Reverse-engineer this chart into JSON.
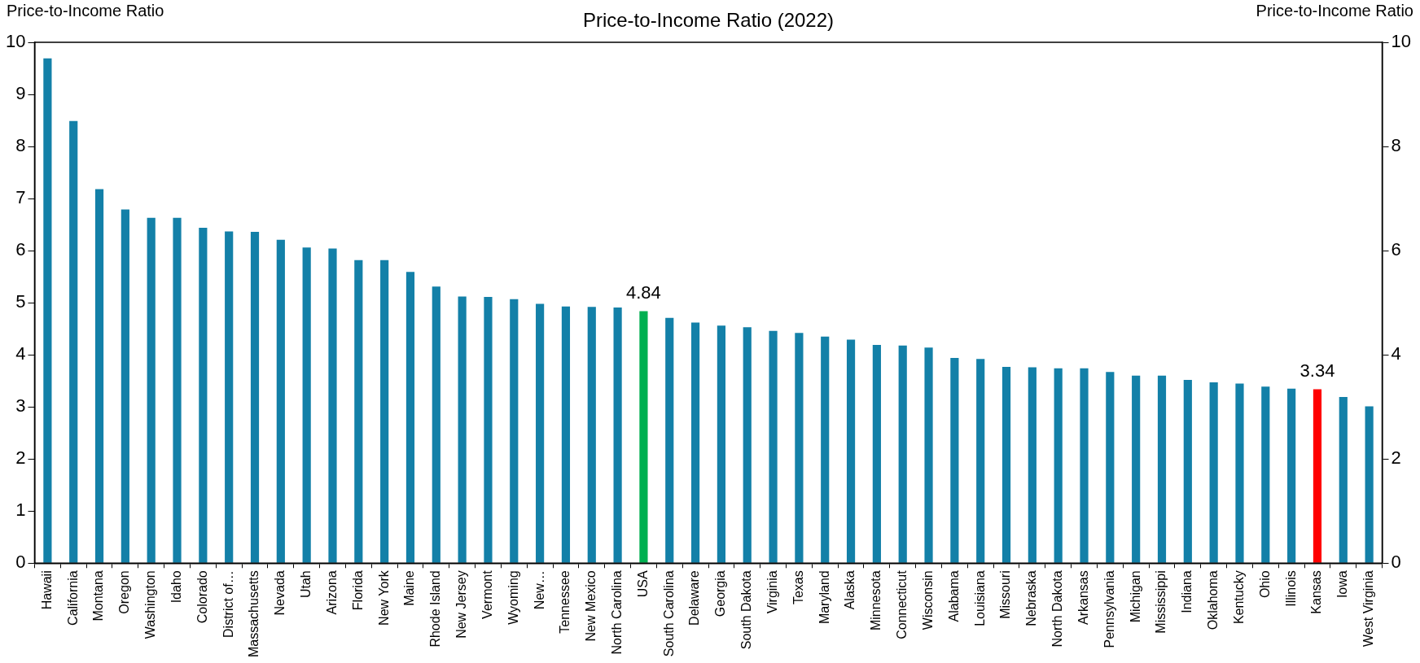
{
  "chart_data": {
    "type": "bar",
    "title": "Price-to-Income Ratio (2022)",
    "ylabel": "Price-to-Income Ratio",
    "y2label": "Price-to-Income Ratio",
    "categories": [
      "Hawaii",
      "California",
      "Montana",
      "Oregon",
      "Washington",
      "Idaho",
      "Colorado",
      "District of…",
      "Massachusetts",
      "Nevada",
      "Utah",
      "Arizona",
      "Florida",
      "New York",
      "Maine",
      "Rhode Island",
      "New Jersey",
      "Vermont",
      "Wyoming",
      "New…",
      "Tennessee",
      "New Mexico",
      "North Carolina",
      "USA",
      "South Carolina",
      "Delaware",
      "Georgia",
      "South Dakota",
      "Virginia",
      "Texas",
      "Maryland",
      "Alaska",
      "Minnesota",
      "Connecticut",
      "Wisconsin",
      "Alabama",
      "Louisiana",
      "Missouri",
      "Nebraska",
      "North Dakota",
      "Arkansas",
      "Pennsylvania",
      "Michigan",
      "Mississippi",
      "Indiana",
      "Oklahoma",
      "Kentucky",
      "Ohio",
      "Illinois",
      "Kansas",
      "Iowa",
      "West Virginia"
    ],
    "values": [
      9.69,
      8.49,
      7.18,
      6.79,
      6.63,
      6.63,
      6.44,
      6.37,
      6.36,
      6.21,
      6.06,
      6.04,
      5.82,
      5.82,
      5.59,
      5.31,
      5.12,
      5.11,
      5.07,
      4.98,
      4.93,
      4.92,
      4.91,
      4.84,
      4.71,
      4.62,
      4.56,
      4.53,
      4.46,
      4.42,
      4.35,
      4.29,
      4.19,
      4.18,
      4.14,
      3.94,
      3.92,
      3.77,
      3.76,
      3.74,
      3.74,
      3.67,
      3.6,
      3.6,
      3.52,
      3.47,
      3.45,
      3.39,
      3.35,
      3.34,
      3.19,
      3.01
    ],
    "colors": [
      "#1380a8",
      "#1380a8",
      "#1380a8",
      "#1380a8",
      "#1380a8",
      "#1380a8",
      "#1380a8",
      "#1380a8",
      "#1380a8",
      "#1380a8",
      "#1380a8",
      "#1380a8",
      "#1380a8",
      "#1380a8",
      "#1380a8",
      "#1380a8",
      "#1380a8",
      "#1380a8",
      "#1380a8",
      "#1380a8",
      "#1380a8",
      "#1380a8",
      "#1380a8",
      "#00b050",
      "#1380a8",
      "#1380a8",
      "#1380a8",
      "#1380a8",
      "#1380a8",
      "#1380a8",
      "#1380a8",
      "#1380a8",
      "#1380a8",
      "#1380a8",
      "#1380a8",
      "#1380a8",
      "#1380a8",
      "#1380a8",
      "#1380a8",
      "#1380a8",
      "#1380a8",
      "#1380a8",
      "#1380a8",
      "#1380a8",
      "#1380a8",
      "#1380a8",
      "#1380a8",
      "#1380a8",
      "#1380a8",
      "#ff0000",
      "#1380a8",
      "#1380a8"
    ],
    "value_labels": [
      null,
      null,
      null,
      null,
      null,
      null,
      null,
      null,
      null,
      null,
      null,
      null,
      null,
      null,
      null,
      null,
      null,
      null,
      null,
      null,
      null,
      null,
      null,
      "4.84",
      null,
      null,
      null,
      null,
      null,
      null,
      null,
      null,
      null,
      null,
      null,
      null,
      null,
      null,
      null,
      null,
      null,
      null,
      null,
      null,
      null,
      null,
      null,
      null,
      null,
      "3.34",
      null,
      null
    ],
    "ylim": [
      0,
      10
    ],
    "yticks": [
      0,
      1,
      2,
      3,
      4,
      5,
      6,
      7,
      8,
      9,
      10
    ],
    "y2lim": [
      0,
      10
    ],
    "y2ticks": [
      0,
      2,
      4,
      6,
      8,
      10
    ],
    "grid": false,
    "legend": false
  }
}
